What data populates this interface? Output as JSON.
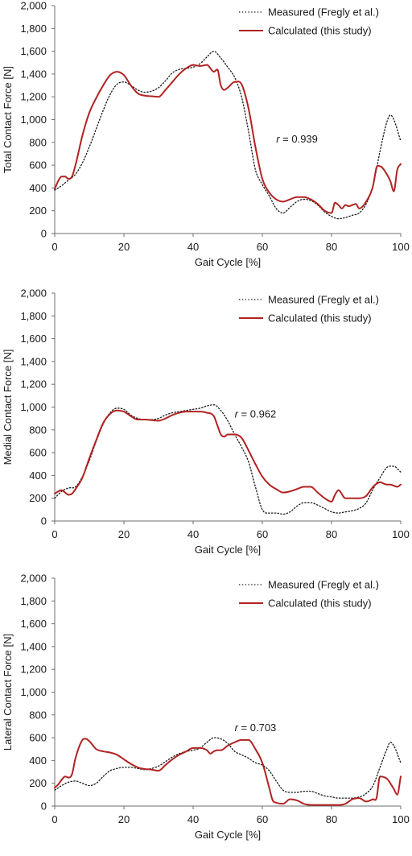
{
  "chart_data": [
    {
      "type": "line",
      "title": "",
      "xlabel": "Gait Cycle [%]",
      "ylabel": "Total Contact Force [N]",
      "xlim": [
        0,
        100
      ],
      "ylim": [
        0,
        2000
      ],
      "xticks": [
        0,
        20,
        40,
        60,
        80,
        100
      ],
      "xtick_labels": [
        "0",
        "20",
        "40",
        "60",
        "80",
        "100"
      ],
      "yticks": [
        0,
        200,
        400,
        600,
        800,
        1000,
        1200,
        1400,
        1600,
        1800,
        2000
      ],
      "ytick_labels": [
        "0",
        "200",
        "400",
        "600",
        "800",
        "1,000",
        "1,200",
        "1,400",
        "1,600",
        "1,800",
        "2,000"
      ],
      "grid": false,
      "legend_position": "top-right",
      "annotation": {
        "prefix": "r",
        "text": " = 0.939",
        "x": 64,
        "y": 830
      },
      "series": [
        {
          "name": "Measured (Fregly et al.)",
          "style": "dotted",
          "color": "#1a1a1a",
          "x": [
            0,
            2,
            4,
            6,
            8,
            10,
            12,
            14,
            16,
            18,
            20,
            22,
            24,
            26,
            28,
            30,
            32,
            34,
            36,
            38,
            40,
            42,
            44,
            46,
            48,
            50,
            52,
            54,
            56,
            58,
            60,
            62,
            64,
            66,
            68,
            70,
            72,
            74,
            76,
            78,
            80,
            82,
            84,
            86,
            88,
            90,
            92,
            94,
            96,
            97,
            98,
            100
          ],
          "values": [
            380,
            420,
            470,
            520,
            620,
            760,
            920,
            1080,
            1220,
            1310,
            1330,
            1300,
            1260,
            1240,
            1250,
            1280,
            1340,
            1410,
            1440,
            1450,
            1460,
            1490,
            1550,
            1600,
            1540,
            1460,
            1370,
            1200,
            900,
            560,
            430,
            330,
            220,
            180,
            230,
            280,
            300,
            290,
            250,
            190,
            150,
            130,
            140,
            160,
            180,
            260,
            420,
            720,
            980,
            1040,
            1000,
            810
          ]
        },
        {
          "name": "Calculated (this study)",
          "style": "solid",
          "color": "#b22222",
          "x": [
            0,
            1,
            2,
            3,
            4,
            5,
            6,
            8,
            10,
            12,
            14,
            16,
            18,
            20,
            22,
            24,
            26,
            28,
            30,
            32,
            34,
            36,
            38,
            40,
            42,
            44,
            46,
            47,
            48,
            49,
            50,
            52,
            54,
            56,
            58,
            60,
            62,
            64,
            66,
            68,
            70,
            72,
            74,
            76,
            78,
            80,
            81,
            82,
            83,
            84,
            85,
            86,
            87,
            88,
            90,
            92,
            93,
            94,
            96,
            97,
            98,
            99,
            100
          ],
          "values": [
            390,
            460,
            500,
            500,
            480,
            500,
            600,
            860,
            1060,
            1190,
            1300,
            1390,
            1420,
            1390,
            1300,
            1230,
            1210,
            1205,
            1200,
            1260,
            1330,
            1400,
            1450,
            1480,
            1470,
            1480,
            1420,
            1440,
            1300,
            1260,
            1280,
            1330,
            1310,
            1100,
            760,
            480,
            360,
            300,
            280,
            300,
            320,
            320,
            300,
            260,
            200,
            180,
            270,
            250,
            220,
            250,
            240,
            250,
            260,
            220,
            280,
            420,
            580,
            590,
            520,
            460,
            370,
            560,
            610
          ]
        }
      ]
    },
    {
      "type": "line",
      "title": "",
      "xlabel": "Gait Cycle [%]",
      "ylabel": "Medial Contact Force [N]",
      "xlim": [
        0,
        100
      ],
      "ylim": [
        0,
        2000
      ],
      "xticks": [
        0,
        20,
        40,
        60,
        80,
        100
      ],
      "xtick_labels": [
        "0",
        "20",
        "40",
        "60",
        "80",
        "100"
      ],
      "yticks": [
        0,
        200,
        400,
        600,
        800,
        1000,
        1200,
        1400,
        1600,
        1800,
        2000
      ],
      "ytick_labels": [
        "0",
        "200",
        "400",
        "600",
        "800",
        "1,000",
        "1,200",
        "1,400",
        "1,600",
        "1,800",
        "2,000"
      ],
      "grid": false,
      "legend_position": "top-right",
      "annotation": {
        "prefix": "r",
        "text": " = 0.962",
        "x": 52,
        "y": 940
      },
      "series": [
        {
          "name": "Measured (Fregly et al.)",
          "style": "dotted",
          "color": "#1a1a1a",
          "x": [
            0,
            2,
            4,
            6,
            8,
            10,
            12,
            14,
            16,
            18,
            20,
            22,
            24,
            26,
            28,
            30,
            32,
            34,
            36,
            38,
            40,
            42,
            44,
            46,
            48,
            50,
            52,
            54,
            56,
            58,
            60,
            62,
            64,
            66,
            68,
            70,
            72,
            74,
            76,
            78,
            80,
            82,
            84,
            86,
            88,
            90,
            92,
            94,
            96,
            98,
            100
          ],
          "values": [
            200,
            260,
            290,
            300,
            390,
            530,
            700,
            850,
            950,
            990,
            980,
            930,
            900,
            890,
            890,
            900,
            930,
            950,
            960,
            970,
            980,
            990,
            1010,
            1020,
            970,
            880,
            760,
            650,
            520,
            300,
            100,
            70,
            70,
            60,
            80,
            130,
            160,
            160,
            140,
            110,
            80,
            70,
            80,
            90,
            110,
            160,
            280,
            380,
            470,
            480,
            430
          ]
        },
        {
          "name": "Calculated (this study)",
          "style": "solid",
          "color": "#b22222",
          "x": [
            0,
            1,
            2,
            3,
            4,
            5,
            6,
            8,
            10,
            12,
            14,
            16,
            18,
            20,
            22,
            24,
            26,
            28,
            30,
            32,
            34,
            36,
            38,
            40,
            42,
            44,
            46,
            47,
            48,
            49,
            50,
            52,
            54,
            56,
            58,
            60,
            62,
            64,
            66,
            68,
            70,
            72,
            74,
            76,
            78,
            80,
            81,
            82,
            84,
            86,
            88,
            90,
            92,
            94,
            96,
            97,
            98,
            99,
            100
          ],
          "values": [
            240,
            260,
            270,
            250,
            230,
            240,
            280,
            380,
            550,
            710,
            860,
            940,
            970,
            960,
            920,
            890,
            890,
            885,
            880,
            900,
            930,
            950,
            960,
            960,
            960,
            950,
            920,
            840,
            760,
            740,
            760,
            760,
            730,
            620,
            500,
            390,
            320,
            280,
            250,
            260,
            280,
            300,
            300,
            250,
            200,
            170,
            230,
            270,
            200,
            200,
            200,
            220,
            300,
            340,
            320,
            320,
            310,
            300,
            320
          ]
        }
      ]
    },
    {
      "type": "line",
      "title": "",
      "xlabel": "Gait Cycle [%]",
      "ylabel": "Lateral Contact Force [N]",
      "xlim": [
        0,
        100
      ],
      "ylim": [
        0,
        2000
      ],
      "xticks": [
        0,
        20,
        40,
        60,
        80,
        100
      ],
      "xtick_labels": [
        "0",
        "20",
        "40",
        "60",
        "80",
        "100"
      ],
      "yticks": [
        0,
        200,
        400,
        600,
        800,
        1000,
        1200,
        1400,
        1600,
        1800,
        2000
      ],
      "ytick_labels": [
        "0",
        "200",
        "400",
        "600",
        "800",
        "1,000",
        "1,200",
        "1,400",
        "1,600",
        "1,800",
        "2,000"
      ],
      "grid": false,
      "legend_position": "top-right",
      "annotation": {
        "prefix": "r",
        "text": " = 0.703",
        "x": 52,
        "y": 690
      },
      "series": [
        {
          "name": "Measured (Fregly et al.)",
          "style": "dotted",
          "color": "#1a1a1a",
          "x": [
            0,
            2,
            4,
            6,
            8,
            10,
            12,
            14,
            16,
            18,
            20,
            22,
            24,
            26,
            28,
            30,
            32,
            34,
            36,
            38,
            40,
            42,
            44,
            46,
            48,
            50,
            52,
            54,
            56,
            58,
            60,
            62,
            64,
            66,
            68,
            70,
            72,
            74,
            76,
            78,
            80,
            82,
            84,
            86,
            88,
            90,
            92,
            94,
            96,
            97,
            98,
            100
          ],
          "values": [
            140,
            180,
            210,
            220,
            200,
            180,
            200,
            260,
            310,
            330,
            340,
            340,
            330,
            320,
            330,
            350,
            390,
            430,
            460,
            480,
            490,
            510,
            560,
            600,
            590,
            550,
            480,
            450,
            420,
            380,
            360,
            310,
            220,
            140,
            120,
            120,
            130,
            130,
            110,
            90,
            80,
            70,
            70,
            70,
            80,
            110,
            180,
            340,
            500,
            560,
            530,
            380
          ]
        },
        {
          "name": "Calculated (this study)",
          "style": "solid",
          "color": "#b22222",
          "x": [
            0,
            1,
            2,
            3,
            4,
            5,
            6,
            8,
            9,
            10,
            12,
            14,
            16,
            18,
            20,
            22,
            24,
            26,
            28,
            30,
            32,
            34,
            36,
            38,
            40,
            42,
            44,
            45,
            46,
            47,
            48,
            50,
            52,
            54,
            56,
            58,
            60,
            62,
            63,
            64,
            66,
            68,
            70,
            72,
            74,
            76,
            78,
            80,
            82,
            84,
            86,
            88,
            90,
            92,
            93,
            94,
            96,
            97,
            98,
            99,
            100
          ],
          "values": [
            160,
            190,
            230,
            260,
            250,
            280,
            420,
            580,
            590,
            570,
            500,
            480,
            470,
            450,
            410,
            370,
            340,
            325,
            320,
            310,
            360,
            410,
            450,
            480,
            510,
            510,
            490,
            460,
            480,
            490,
            490,
            530,
            560,
            580,
            580,
            500,
            380,
            160,
            50,
            30,
            20,
            60,
            50,
            20,
            10,
            10,
            10,
            10,
            10,
            20,
            60,
            70,
            40,
            60,
            70,
            260,
            240,
            200,
            150,
            100,
            260
          ]
        }
      ]
    }
  ]
}
